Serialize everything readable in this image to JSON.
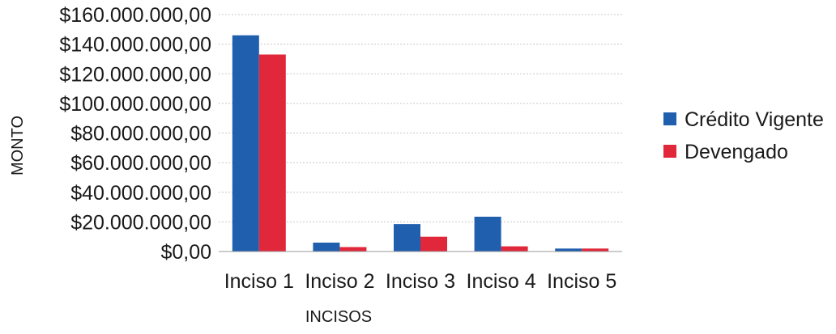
{
  "chart_data": {
    "type": "bar",
    "title": "",
    "xlabel": "INCISOS",
    "ylabel": "MONTO",
    "categories": [
      "Inciso 1",
      "Inciso 2",
      "Inciso 3",
      "Inciso 4",
      "Inciso 5"
    ],
    "series": [
      {
        "name": "Crédito Vigente",
        "color": "#1f5fae",
        "values": [
          146000000,
          6000000,
          18500000,
          23500000,
          2000000
        ]
      },
      {
        "name": "Devengado",
        "color": "#e0283a",
        "values": [
          133000000,
          3000000,
          10000000,
          3500000,
          2000000
        ]
      }
    ],
    "ylim": [
      0,
      160000000
    ],
    "y_ticks": [
      0,
      20000000,
      40000000,
      60000000,
      80000000,
      100000000,
      120000000,
      140000000,
      160000000
    ],
    "y_tick_labels": [
      "$0,00",
      "$20.000.000,00",
      "$40.000.000,00",
      "$60.000.000,00",
      "$80.000.000,00",
      "$100.000.000,00",
      "$120.000.000,00",
      "$140.000.000,00",
      "$160.000.000,00"
    ],
    "grid": true,
    "legend_position": "right"
  }
}
